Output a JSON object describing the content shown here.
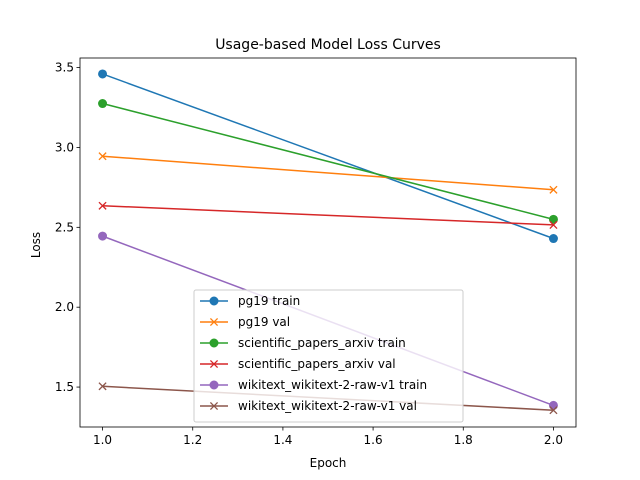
{
  "chart_data": {
    "type": "line",
    "title": "Usage-based Model Loss Curves",
    "xlabel": "Epoch",
    "ylabel": "Loss",
    "x": [
      1.0,
      2.0
    ],
    "xlim": [
      0.95,
      2.05
    ],
    "ylim": [
      1.25,
      3.56
    ],
    "xticks": [
      1.0,
      1.2,
      1.4,
      1.6,
      1.8,
      2.0
    ],
    "xtick_labels": [
      "1.0",
      "1.2",
      "1.4",
      "1.6",
      "1.8",
      "2.0"
    ],
    "yticks": [
      1.5,
      2.0,
      2.5,
      3.0,
      3.5
    ],
    "ytick_labels": [
      "1.5",
      "2.0",
      "2.5",
      "3.0",
      "3.5"
    ],
    "grid": false,
    "legend_position": "lower-center",
    "series": [
      {
        "name": "pg19 train",
        "values": [
          3.46,
          2.43
        ],
        "color": "#1f77b4",
        "marker": "circle"
      },
      {
        "name": "pg19 val",
        "values": [
          2.945,
          2.735
        ],
        "color": "#ff7f0e",
        "marker": "x"
      },
      {
        "name": "scientific_papers_arxiv train",
        "values": [
          3.275,
          2.55
        ],
        "color": "#2ca02c",
        "marker": "circle"
      },
      {
        "name": "scientific_papers_arxiv val",
        "values": [
          2.635,
          2.515
        ],
        "color": "#d62728",
        "marker": "x"
      },
      {
        "name": "wikitext_wikitext-2-raw-v1 train",
        "values": [
          2.445,
          1.385
        ],
        "color": "#9467bd",
        "marker": "circle"
      },
      {
        "name": "wikitext_wikitext-2-raw-v1 val",
        "values": [
          1.505,
          1.355
        ],
        "color": "#8c564b",
        "marker": "x"
      }
    ]
  }
}
